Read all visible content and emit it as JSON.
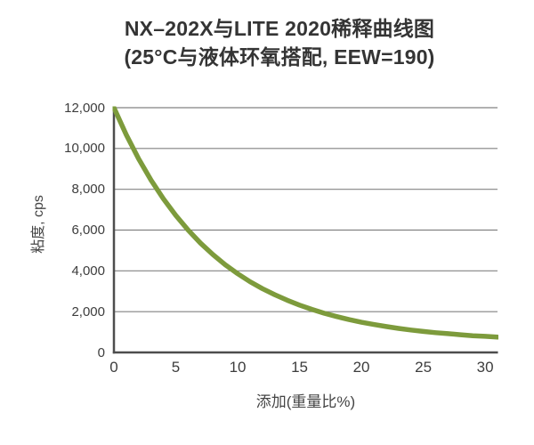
{
  "header": {
    "title_line1": "NX–202X与LITE 2020稀释曲线图",
    "title_line2": "(25°C与液体环氧搭配, EEW=190)"
  },
  "chart_data": {
    "type": "line",
    "title": "NX–202X与LITE 2020稀释曲线图 (25°C与液体环氧搭配, EEW=190)",
    "xlabel": "添加(重量比%)",
    "ylabel": "粘度, cps",
    "xlim": [
      0,
      31
    ],
    "ylim": [
      0,
      12000
    ],
    "xticks": [
      0,
      5,
      10,
      15,
      20,
      25,
      30
    ],
    "xtick_labels": [
      "0",
      "5",
      "10",
      "15",
      "20",
      "25",
      "30"
    ],
    "yticks": [
      0,
      2000,
      4000,
      6000,
      8000,
      10000,
      12000
    ],
    "ytick_labels": [
      "0",
      "2,000",
      "4,000",
      "6,000",
      "8,000",
      "10,000",
      "12,000"
    ],
    "grid": "horizontal",
    "legend_position": "none",
    "series": [
      {
        "color": "#7D9B3C",
        "x": [
          0,
          1,
          2,
          3,
          4,
          5,
          6,
          7,
          8,
          9,
          10,
          11,
          12,
          13,
          14,
          15,
          16,
          17,
          18,
          19,
          20,
          21,
          22,
          23,
          24,
          25,
          26,
          27,
          28,
          29,
          30,
          31
        ],
        "y": [
          12000,
          10670,
          9490,
          8450,
          7530,
          6720,
          6000,
          5360,
          4800,
          4300,
          3860,
          3470,
          3130,
          2830,
          2560,
          2320,
          2110,
          1920,
          1760,
          1610,
          1480,
          1370,
          1270,
          1180,
          1100,
          1030,
          970,
          920,
          870,
          820,
          790,
          750
        ]
      }
    ]
  },
  "colors": {
    "curve": "#7D9B3C",
    "gridline": "#828282",
    "axis": "#4d4d4d",
    "title_text": "#343434",
    "tick_text": "#3d3d3d",
    "background": "#ffffff"
  }
}
